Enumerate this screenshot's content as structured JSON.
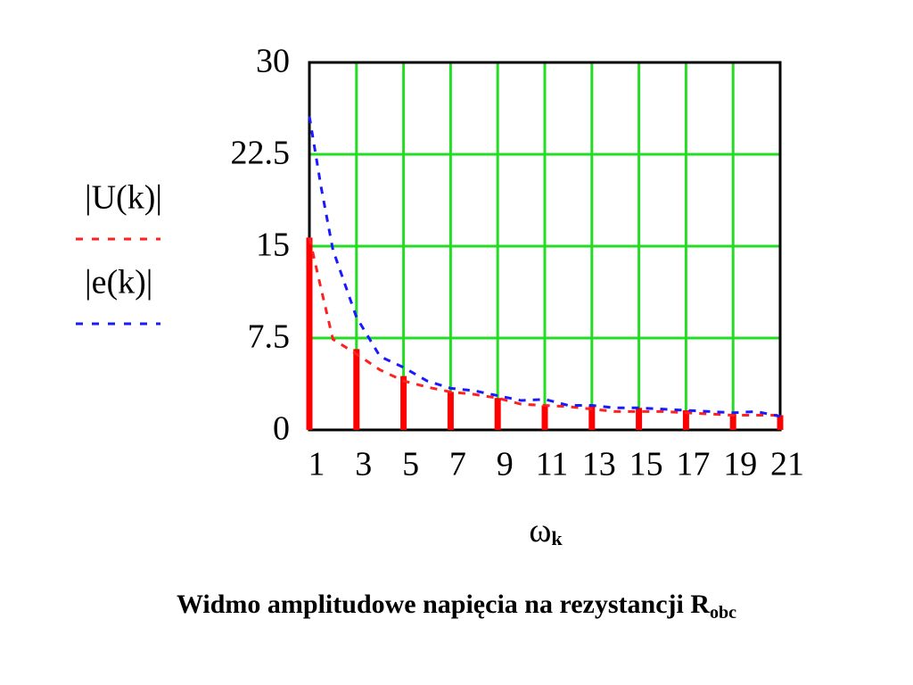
{
  "chart_data": {
    "type": "stem-line",
    "xlabel": "ω",
    "xlabel_sub": "k",
    "caption": "Widmo amplitudowe napięcia na rezystancji R",
    "caption_sub": "obc",
    "xlim": [
      1,
      21
    ],
    "ylim": [
      0,
      30
    ],
    "xticks": [
      1,
      3,
      5,
      7,
      9,
      11,
      13,
      15,
      17,
      19,
      21
    ],
    "yticks": [
      0,
      7.5,
      15,
      22.5,
      30
    ],
    "grid": true,
    "grid_color": "#22dd22",
    "series": [
      {
        "name": "|U(k)|",
        "color": "#ff2020",
        "x": [
          1,
          1.5,
          2,
          3,
          4,
          5,
          6,
          7,
          8,
          9,
          10,
          11,
          12,
          13,
          14,
          15,
          16,
          17,
          18,
          19,
          20,
          21
        ],
        "values": [
          15.7,
          11.5,
          7.4,
          6.2,
          4.9,
          4.0,
          3.5,
          3.1,
          2.9,
          2.6,
          2.1,
          2.0,
          1.9,
          1.7,
          1.5,
          1.5,
          1.5,
          1.4,
          1.3,
          1.2,
          1.2,
          1.2
        ]
      },
      {
        "name": "|e(k)|",
        "color": "#1a1aff",
        "x": [
          1,
          1.5,
          2,
          3,
          4,
          5,
          6,
          7,
          8,
          9,
          10,
          11,
          12,
          13,
          14,
          15,
          16,
          17,
          18,
          19,
          20,
          21
        ],
        "values": [
          25.6,
          19.8,
          14.7,
          9.2,
          6.0,
          5.1,
          4.0,
          3.4,
          3.2,
          2.8,
          2.4,
          2.5,
          2.0,
          2.0,
          1.8,
          1.8,
          1.7,
          1.6,
          1.5,
          1.4,
          1.5,
          1.1
        ]
      }
    ],
    "stems": {
      "color": "#ff0000",
      "x": [
        1,
        3,
        5,
        7,
        9,
        11,
        13,
        15,
        17,
        19,
        21
      ],
      "values": [
        15.7,
        6.6,
        4.4,
        3.1,
        2.6,
        2.0,
        2.0,
        1.8,
        1.6,
        1.3,
        1.2
      ]
    }
  }
}
